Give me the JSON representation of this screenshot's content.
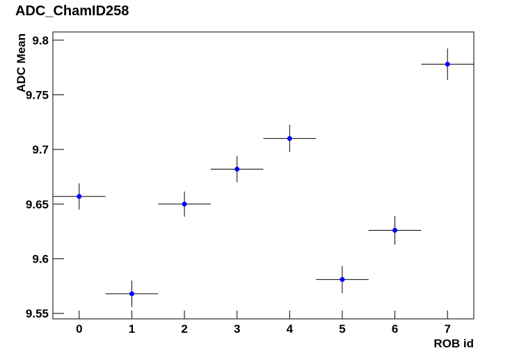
{
  "chart_data": {
    "type": "scatter",
    "title": "ADC_ChamID258",
    "x_label": "ROB id",
    "y_label": "ADC Mean",
    "x": [
      0,
      1,
      2,
      3,
      4,
      5,
      6,
      7
    ],
    "series": [
      {
        "color": "#0000ff",
        "values": [
          9.657,
          9.568,
          9.65,
          9.682,
          9.71,
          9.581,
          9.626,
          9.778
        ],
        "errors": [
          0.012,
          0.012,
          0.0115,
          0.012,
          0.0125,
          0.0125,
          0.013,
          0.0145
        ],
        "x_errors": [
          0.5,
          0.5,
          0.5,
          0.5,
          0.5,
          0.5,
          0.5,
          0.5
        ]
      }
    ],
    "xlim": [
      -0.5,
      7.5
    ],
    "ylim": [
      9.545,
      9.8075
    ],
    "xticks": [
      0,
      1,
      2,
      3,
      4,
      5,
      6,
      7
    ],
    "yticks": [
      9.55,
      9.6,
      9.65,
      9.7,
      9.75,
      9.8
    ]
  }
}
